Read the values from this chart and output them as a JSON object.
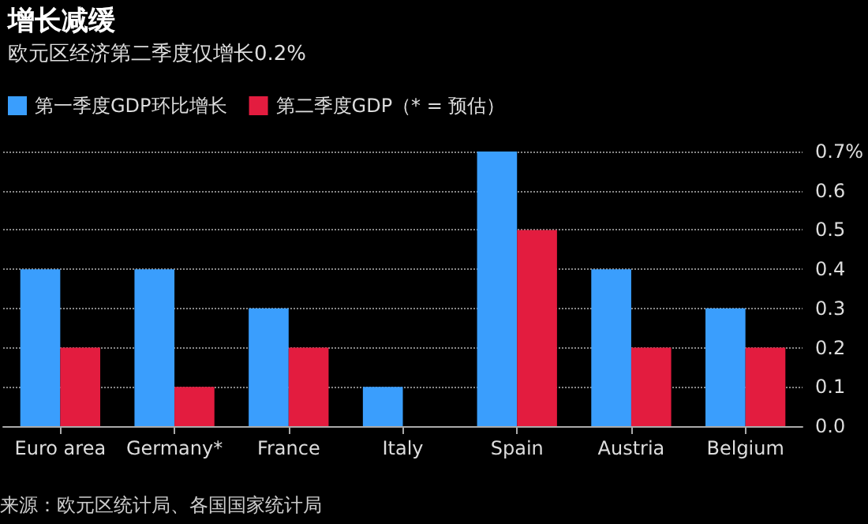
{
  "chart_data": {
    "type": "bar",
    "title": "增长减缓",
    "subtitle": "欧元区经济第二季度仅增长0.2%",
    "categories": [
      "Euro area",
      "Germany*",
      "France",
      "Italy",
      "Spain",
      "Austria",
      "Belgium"
    ],
    "series": [
      {
        "name": "第一季度GDP环比增长",
        "color": "#3a9efd",
        "values": [
          0.4,
          0.4,
          0.3,
          0.1,
          0.7,
          0.4,
          0.3
        ]
      },
      {
        "name": "第二季度GDP（* = 预估）",
        "color": "#e31c3f",
        "values": [
          0.2,
          0.1,
          0.2,
          0.0,
          0.5,
          0.2,
          0.2
        ]
      }
    ],
    "ylim": [
      0,
      0.7
    ],
    "yticks": [
      {
        "value": 0,
        "label": "0.0"
      },
      0.1,
      0.2,
      0.3,
      0.4,
      0.5,
      0.6,
      {
        "value": 0.7,
        "label": "0.7%"
      }
    ],
    "grid": "y",
    "legend": "top left",
    "annotations": [
      "来源：欧元区统计局、各国国家统计局"
    ]
  }
}
